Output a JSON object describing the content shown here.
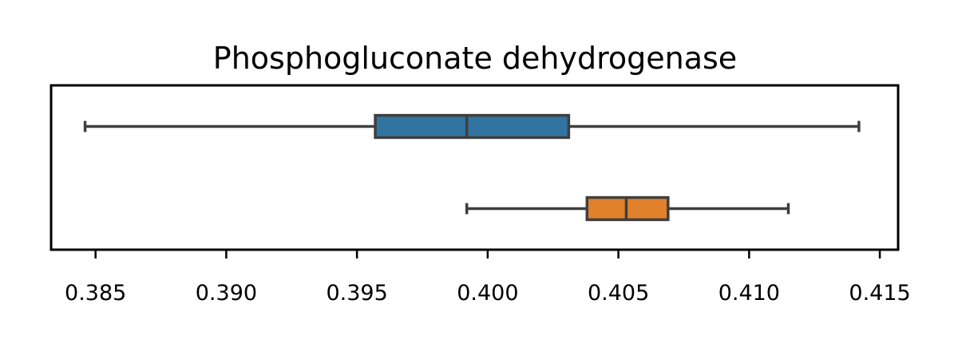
{
  "chart_data": {
    "type": "boxplot",
    "orientation": "horizontal",
    "title": "Phosphogluconate dehydrogenase",
    "xlabel": "",
    "ylabel": "",
    "xlim": [
      0.3833,
      0.4157
    ],
    "xticks": [
      0.385,
      0.39,
      0.395,
      0.4,
      0.405,
      0.41,
      0.415
    ],
    "xtick_labels": [
      "0.385",
      "0.390",
      "0.395",
      "0.400",
      "0.405",
      "0.410",
      "0.415"
    ],
    "grid": false,
    "legend": "none",
    "series": [
      {
        "color": "#3274a1",
        "whisker_low": 0.3846,
        "q1": 0.3957,
        "median": 0.3992,
        "q3": 0.4031,
        "whisker_high": 0.4142
      },
      {
        "color": "#e1812c",
        "whisker_low": 0.3992,
        "q1": 0.4038,
        "median": 0.4053,
        "q3": 0.4069,
        "whisker_high": 0.4115
      }
    ]
  }
}
